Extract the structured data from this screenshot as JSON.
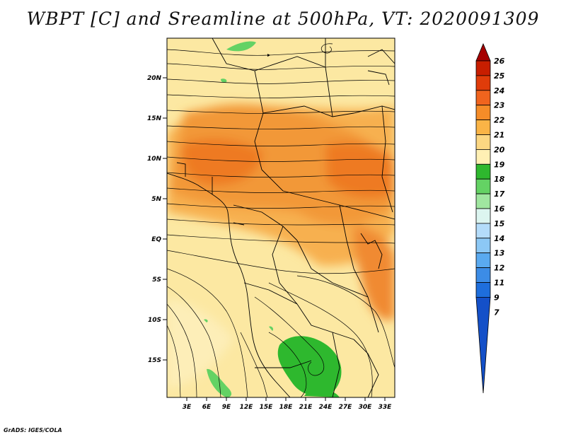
{
  "title": "WBPT [C] and Sreamline at 500hPa, VT: 2020091309",
  "credit": "GrADS: IGES/COLA",
  "map": {
    "lat_labels": [
      "20N",
      "15N",
      "10N",
      "5N",
      "EQ",
      "5S",
      "10S",
      "15S"
    ],
    "lon_labels": [
      "3E",
      "6E",
      "9E",
      "12E",
      "15E",
      "18E",
      "21E",
      "24E",
      "27E",
      "30E",
      "33E"
    ]
  },
  "colorbar": {
    "labels": [
      "26",
      "25",
      "24",
      "23",
      "22",
      "21",
      "20",
      "19",
      "18",
      "17",
      "16",
      "15",
      "14",
      "13",
      "12",
      "11",
      "9",
      "7"
    ],
    "colors": [
      "#a50000",
      "#c81e00",
      "#e03c0a",
      "#f0641e",
      "#f58c28",
      "#fab446",
      "#fcd782",
      "#fff0b4",
      "#2eb82e",
      "#64d264",
      "#a0e6a0",
      "#dcf5f0",
      "#b4dcfa",
      "#8cc8f5",
      "#5aaaf0",
      "#3c8ce6",
      "#1e6edc",
      "#1450c8"
    ]
  }
}
